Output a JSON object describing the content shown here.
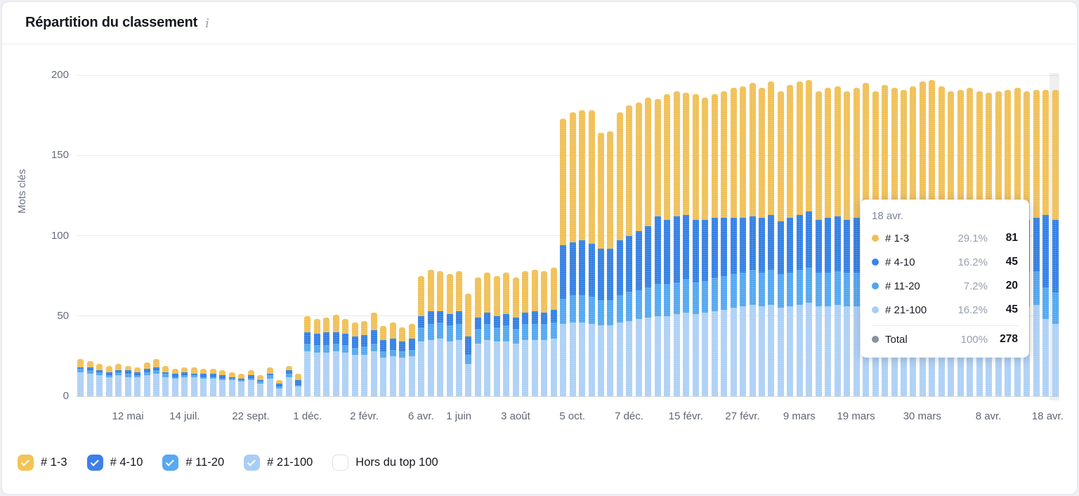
{
  "header": {
    "title": "Répartition du classement",
    "info_icon": "i"
  },
  "chart_data": {
    "type": "bar",
    "stacked": true,
    "title": "Répartition du classement",
    "ylabel": "Mots clés",
    "ylim": [
      0,
      200
    ],
    "yticks": [
      0,
      50,
      100,
      150,
      200
    ],
    "grid": "horizontal",
    "highlight_index": 103,
    "series_order_bottom_to_top": [
      "# 21-100",
      "# 11-20",
      "# 4-10",
      "# 1-3"
    ],
    "series_colors_bottom_to_top": [
      "#ABCFF5",
      "#4EA5F1",
      "#2E7CE3",
      "#F0BE52"
    ],
    "x_ticks": [
      {
        "bar": 5,
        "label": "12 mai"
      },
      {
        "bar": 11,
        "label": "14 juil."
      },
      {
        "bar": 18,
        "label": "22 sept."
      },
      {
        "bar": 24,
        "label": "1 déc."
      },
      {
        "bar": 30,
        "label": "2 févr."
      },
      {
        "bar": 36,
        "label": "6 avr."
      },
      {
        "bar": 40,
        "label": "1 juin"
      },
      {
        "bar": 46,
        "label": "3 août"
      },
      {
        "bar": 52,
        "label": "5 oct."
      },
      {
        "bar": 58,
        "label": "7 déc."
      },
      {
        "bar": 64,
        "label": "15 févr."
      },
      {
        "bar": 70,
        "label": "27 févr."
      },
      {
        "bar": 76,
        "label": "9 mars"
      },
      {
        "bar": 82,
        "label": "19 mars"
      },
      {
        "bar": 89,
        "label": "30 mars"
      },
      {
        "bar": 96,
        "label": "8 avr."
      },
      {
        "bar": 103,
        "label": "18 avr."
      }
    ],
    "bars": [
      [
        15,
        2,
        1,
        5
      ],
      [
        14,
        2,
        2,
        4
      ],
      [
        13,
        2,
        1,
        4
      ],
      [
        12,
        1,
        2,
        4
      ],
      [
        13,
        2,
        1,
        4
      ],
      [
        12,
        2,
        2,
        3
      ],
      [
        12,
        1,
        2,
        3
      ],
      [
        13,
        2,
        2,
        4
      ],
      [
        14,
        2,
        2,
        5
      ],
      [
        12,
        2,
        1,
        4
      ],
      [
        11,
        1,
        2,
        3
      ],
      [
        12,
        1,
        2,
        3
      ],
      [
        12,
        1,
        1,
        4
      ],
      [
        11,
        1,
        2,
        3
      ],
      [
        11,
        1,
        2,
        3
      ],
      [
        10,
        1,
        2,
        3
      ],
      [
        10,
        1,
        1,
        3
      ],
      [
        9,
        1,
        1,
        3
      ],
      [
        10,
        1,
        2,
        3
      ],
      [
        8,
        1,
        1,
        3
      ],
      [
        11,
        2,
        1,
        4
      ],
      [
        5,
        1,
        2,
        2
      ],
      [
        12,
        2,
        2,
        3
      ],
      [
        6,
        1,
        3,
        4
      ],
      [
        28,
        5,
        7,
        10
      ],
      [
        27,
        5,
        7,
        9
      ],
      [
        27,
        5,
        8,
        9
      ],
      [
        28,
        5,
        7,
        11
      ],
      [
        27,
        5,
        7,
        9
      ],
      [
        26,
        4,
        7,
        9
      ],
      [
        26,
        5,
        7,
        9
      ],
      [
        28,
        5,
        8,
        11
      ],
      [
        24,
        4,
        7,
        9
      ],
      [
        25,
        4,
        7,
        10
      ],
      [
        24,
        4,
        6,
        9
      ],
      [
        25,
        4,
        7,
        9
      ],
      [
        34,
        9,
        7,
        25
      ],
      [
        35,
        10,
        8,
        26
      ],
      [
        36,
        10,
        7,
        25
      ],
      [
        34,
        10,
        7,
        25
      ],
      [
        35,
        10,
        8,
        25
      ],
      [
        20,
        6,
        11,
        27
      ],
      [
        33,
        9,
        7,
        25
      ],
      [
        35,
        10,
        7,
        25
      ],
      [
        34,
        9,
        7,
        25
      ],
      [
        34,
        10,
        7,
        26
      ],
      [
        33,
        9,
        7,
        25
      ],
      [
        35,
        10,
        7,
        26
      ],
      [
        35,
        10,
        8,
        26
      ],
      [
        35,
        10,
        7,
        26
      ],
      [
        36,
        10,
        8,
        26
      ],
      [
        45,
        16,
        33,
        79
      ],
      [
        46,
        17,
        33,
        81
      ],
      [
        46,
        17,
        34,
        81
      ],
      [
        45,
        17,
        33,
        83
      ],
      [
        44,
        16,
        32,
        72
      ],
      [
        44,
        16,
        32,
        73
      ],
      [
        46,
        17,
        34,
        80
      ],
      [
        47,
        18,
        35,
        81
      ],
      [
        48,
        18,
        37,
        80
      ],
      [
        49,
        19,
        38,
        80
      ],
      [
        50,
        20,
        42,
        73
      ],
      [
        50,
        20,
        40,
        78
      ],
      [
        51,
        20,
        41,
        78
      ],
      [
        52,
        21,
        40,
        76
      ],
      [
        51,
        20,
        39,
        78
      ],
      [
        52,
        20,
        38,
        76
      ],
      [
        53,
        21,
        37,
        77
      ],
      [
        54,
        21,
        36,
        79
      ],
      [
        55,
        21,
        35,
        81
      ],
      [
        56,
        21,
        34,
        82
      ],
      [
        57,
        22,
        33,
        83
      ],
      [
        56,
        21,
        34,
        81
      ],
      [
        57,
        22,
        34,
        83
      ],
      [
        55,
        21,
        33,
        81
      ],
      [
        56,
        21,
        34,
        83
      ],
      [
        57,
        22,
        34,
        83
      ],
      [
        58,
        22,
        35,
        82
      ],
      [
        56,
        21,
        33,
        80
      ],
      [
        56,
        21,
        34,
        81
      ],
      [
        57,
        21,
        34,
        81
      ],
      [
        56,
        21,
        33,
        80
      ],
      [
        56,
        21,
        34,
        81
      ],
      [
        57,
        22,
        34,
        82
      ],
      [
        56,
        21,
        33,
        80
      ],
      [
        57,
        21,
        34,
        82
      ],
      [
        56,
        21,
        34,
        81
      ],
      [
        56,
        21,
        33,
        81
      ],
      [
        57,
        21,
        34,
        81
      ],
      [
        58,
        22,
        34,
        82
      ],
      [
        58,
        22,
        35,
        82
      ],
      [
        57,
        21,
        34,
        81
      ],
      [
        56,
        21,
        33,
        80
      ],
      [
        56,
        21,
        34,
        80
      ],
      [
        57,
        21,
        34,
        80
      ],
      [
        56,
        21,
        33,
        80
      ],
      [
        56,
        20,
        33,
        80
      ],
      [
        56,
        21,
        33,
        80
      ],
      [
        57,
        21,
        33,
        80
      ],
      [
        57,
        21,
        34,
        80
      ],
      [
        56,
        21,
        33,
        80
      ],
      [
        57,
        21,
        33,
        80
      ],
      [
        48,
        20,
        45,
        78
      ],
      [
        45,
        20,
        45,
        81
      ]
    ]
  },
  "tooltip": {
    "date": "18 avr.",
    "rows": [
      {
        "label": "# 1-3",
        "pct": "29.1%",
        "value": "81",
        "color": "#F0BE52"
      },
      {
        "label": "# 4-10",
        "pct": "16.2%",
        "value": "45",
        "color": "#3C82E9"
      },
      {
        "label": "# 11-20",
        "pct": "7.2%",
        "value": "20",
        "color": "#4EA5F1"
      },
      {
        "label": "# 21-100",
        "pct": "16.2%",
        "value": "45",
        "color": "#A9CEF6"
      }
    ],
    "total": {
      "label": "Total",
      "pct": "100%",
      "value": "278",
      "color": "#8A90A0"
    }
  },
  "legend": [
    {
      "label": "# 1-3",
      "checked": true,
      "color": "#F3C355"
    },
    {
      "label": "# 4-10",
      "checked": true,
      "color": "#3E80E8"
    },
    {
      "label": "# 11-20",
      "checked": true,
      "color": "#56A9F2"
    },
    {
      "label": "# 21-100",
      "checked": true,
      "color": "#A9CEF6"
    },
    {
      "label": "Hors du top 100",
      "checked": false,
      "color": null
    }
  ]
}
